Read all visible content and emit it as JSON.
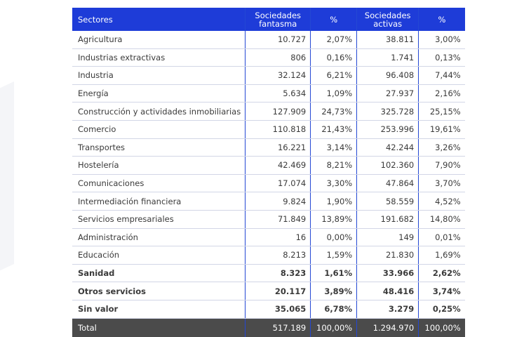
{
  "table": {
    "headers": {
      "sectores": "Sectores",
      "fantasma_l1": "Sociedades",
      "fantasma_l2": "fantasma",
      "pct1": "%",
      "activas_l1": "Sociedades",
      "activas_l2": "activas",
      "pct2": "%"
    },
    "rows": [
      {
        "sector": "Agricultura",
        "fantasma": "10.727",
        "pct1": "2,07%",
        "activas": "38.811",
        "pct2": "3,00%"
      },
      {
        "sector": "Industrias extractivas",
        "fantasma": "806",
        "pct1": "0,16%",
        "activas": "1.741",
        "pct2": "0,13%"
      },
      {
        "sector": "Industria",
        "fantasma": "32.124",
        "pct1": "6,21%",
        "activas": "96.408",
        "pct2": "7,44%"
      },
      {
        "sector": "Energía",
        "fantasma": "5.634",
        "pct1": "1,09%",
        "activas": "27.937",
        "pct2": "2,16%"
      },
      {
        "sector": "Construcción y actividades inmobiliarias",
        "fantasma": "127.909",
        "pct1": "24,73%",
        "activas": "325.728",
        "pct2": "25,15%"
      },
      {
        "sector": "Comercio",
        "fantasma": "110.818",
        "pct1": "21,43%",
        "activas": "253.996",
        "pct2": "19,61%"
      },
      {
        "sector": "Transportes",
        "fantasma": "16.221",
        "pct1": "3,14%",
        "activas": "42.244",
        "pct2": "3,26%"
      },
      {
        "sector": "Hostelería",
        "fantasma": "42.469",
        "pct1": "8,21%",
        "activas": "102.360",
        "pct2": "7,90%"
      },
      {
        "sector": "Comunicaciones",
        "fantasma": "17.074",
        "pct1": "3,30%",
        "activas": "47.864",
        "pct2": "3,70%"
      },
      {
        "sector": "Intermediación financiera",
        "fantasma": "9.824",
        "pct1": "1,90%",
        "activas": "58.559",
        "pct2": "4,52%"
      },
      {
        "sector": "Servicios empresariales",
        "fantasma": "71.849",
        "pct1": "13,89%",
        "activas": "191.682",
        "pct2": "14,80%"
      },
      {
        "sector": "Administración",
        "fantasma": "16",
        "pct1": "0,00%",
        "activas": "149",
        "pct2": "0,01%"
      },
      {
        "sector": "Educación",
        "fantasma": "8.213",
        "pct1": "1,59%",
        "activas": "21.830",
        "pct2": "1,69%"
      },
      {
        "sector": "Sanidad",
        "fantasma": "8.323",
        "pct1": "1,61%",
        "activas": "33.966",
        "pct2": "2,62%"
      },
      {
        "sector": "Otros servicios",
        "fantasma": "20.117",
        "pct1": "3,89%",
        "activas": "48.416",
        "pct2": "3,74%"
      },
      {
        "sector": "Sin valor",
        "fantasma": "35.065",
        "pct1": "6,78%",
        "activas": "3.279",
        "pct2": "0,25%"
      }
    ],
    "total": {
      "sector": "Total",
      "fantasma": "517.189",
      "pct1": "100,00%",
      "activas": "1.294.970",
      "pct2": "100,00%"
    }
  }
}
